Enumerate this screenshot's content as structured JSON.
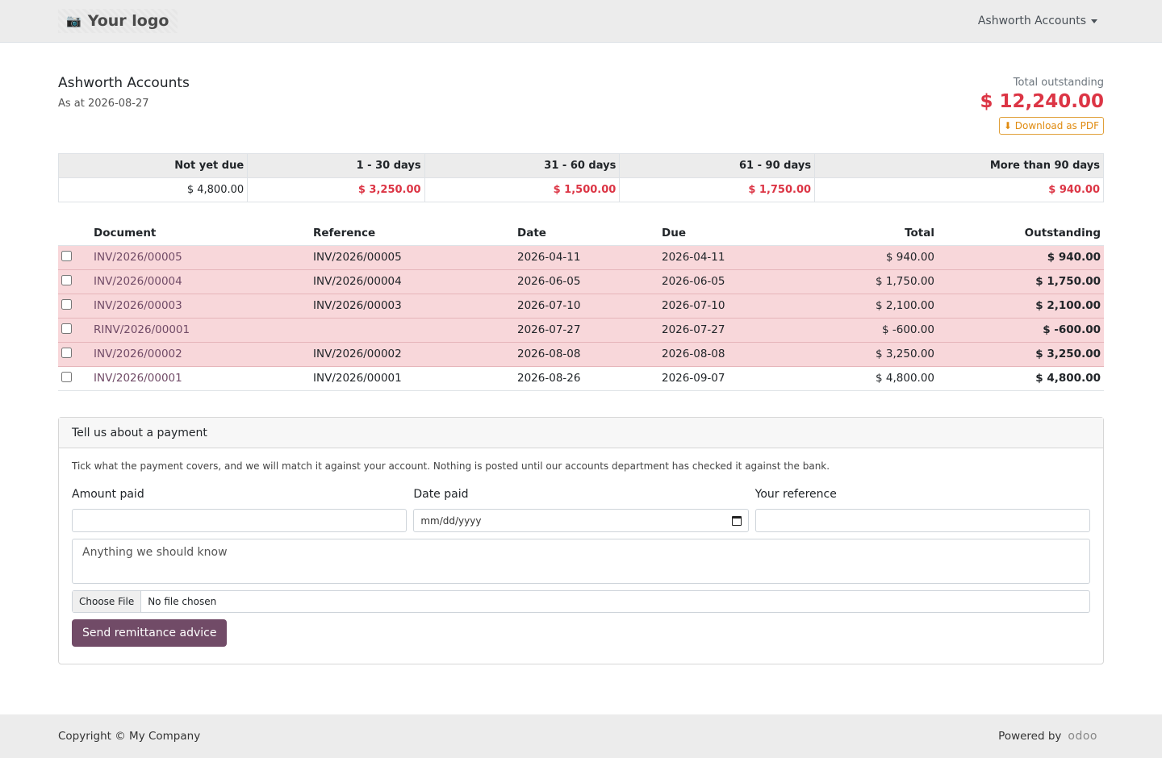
{
  "nav": {
    "logo_text": "Your logo",
    "logo_icon": "camera-icon",
    "account_menu": "Ashworth Accounts"
  },
  "header": {
    "company": "Ashworth Accounts",
    "as_at": "As at 2026-08-27",
    "total_label": "Total outstanding",
    "total_value": "$ 12,240.00",
    "pdf_button": "Download as PDF"
  },
  "aging": {
    "headers": [
      "Not yet due",
      "1 - 30 days",
      "31 - 60 days",
      "61 - 90 days",
      "More than 90 days"
    ],
    "values": [
      "$ 4,800.00",
      "$ 3,250.00",
      "$ 1,500.00",
      "$ 1,750.00",
      "$ 940.00"
    ]
  },
  "documents": {
    "headers": [
      "Document",
      "Reference",
      "Date",
      "Due",
      "Total",
      "Outstanding"
    ],
    "rows": [
      {
        "document": "INV/2026/00005",
        "reference": "INV/2026/00005",
        "date": "2026-04-11",
        "due": "2026-04-11",
        "total": "$ 940.00",
        "outstanding": "$ 940.00",
        "overdue": true
      },
      {
        "document": "INV/2026/00004",
        "reference": "INV/2026/00004",
        "date": "2026-06-05",
        "due": "2026-06-05",
        "total": "$ 1,750.00",
        "outstanding": "$ 1,750.00",
        "overdue": true
      },
      {
        "document": "INV/2026/00003",
        "reference": "INV/2026/00003",
        "date": "2026-07-10",
        "due": "2026-07-10",
        "total": "$ 2,100.00",
        "outstanding": "$ 2,100.00",
        "overdue": true
      },
      {
        "document": "RINV/2026/00001",
        "reference": "",
        "date": "2026-07-27",
        "due": "2026-07-27",
        "total": "$ -600.00",
        "outstanding": "$ -600.00",
        "overdue": true
      },
      {
        "document": "INV/2026/00002",
        "reference": "INV/2026/00002",
        "date": "2026-08-08",
        "due": "2026-08-08",
        "total": "$ 3,250.00",
        "outstanding": "$ 3,250.00",
        "overdue": true
      },
      {
        "document": "INV/2026/00001",
        "reference": "INV/2026/00001",
        "date": "2026-08-26",
        "due": "2026-09-07",
        "total": "$ 4,800.00",
        "outstanding": "$ 4,800.00",
        "overdue": false
      }
    ]
  },
  "payment": {
    "title": "Tell us about a payment",
    "hint": "Tick what the payment covers, and we will match it against your account. Nothing is posted until our accounts department has checked it against the bank.",
    "amount_label": "Amount paid",
    "amount_value": "",
    "date_label": "Date paid",
    "date_placeholder": "mm/dd/yyyy",
    "reference_label": "Your reference",
    "reference_value": "",
    "notes_placeholder": "Anything we should know",
    "file_button": "Choose File",
    "file_status": "No file chosen",
    "submit": "Send remittance advice"
  },
  "footer": {
    "copyright": "Copyright © My Company",
    "powered_by": "Powered by",
    "brand": "odoo"
  },
  "colors": {
    "accent": "#714B67",
    "overdue_bg": "#f8d7da",
    "danger": "#dc3545",
    "pdf_button": "#e08b10"
  }
}
